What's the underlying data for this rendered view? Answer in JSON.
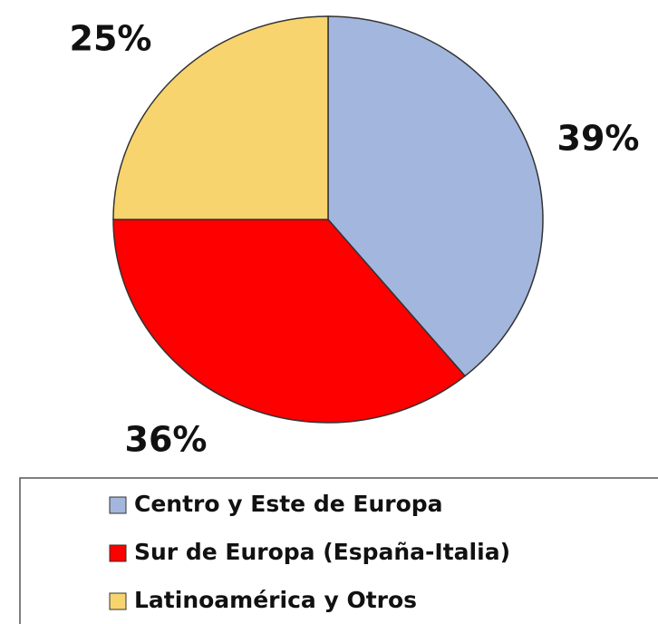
{
  "chart_data": {
    "type": "pie",
    "categories": [
      "Centro y Este de Europa",
      "Sur de Europa (España-Italia)",
      "Latinoamérica y Otros"
    ],
    "values": [
      39,
      36,
      25
    ],
    "value_labels": [
      "39%",
      "36%",
      "25%"
    ],
    "colors": [
      "#a3b6de",
      "#ff0000",
      "#f7d46e"
    ]
  }
}
